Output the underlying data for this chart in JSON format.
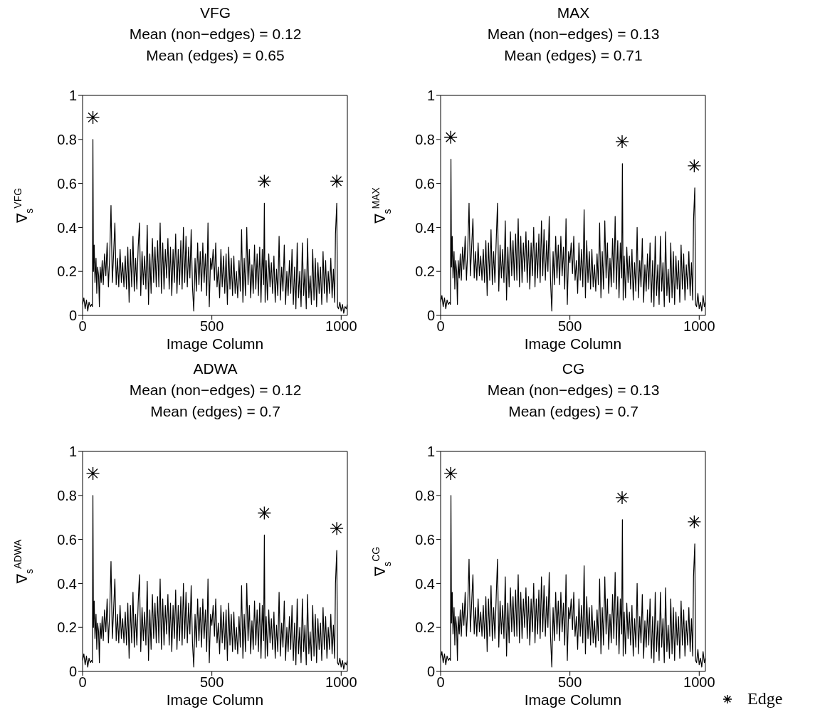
{
  "chart_data": [
    {
      "type": "line",
      "title": "VFG",
      "subtitle": "Mean (non−edges) = 0.12\nMean (edges) = 0.65",
      "xlabel": "Image Column",
      "ylabel": "∇$_{s}$$^{VFG}$",
      "xlim": [
        0,
        1024
      ],
      "xticks": [
        0,
        500,
        1000
      ],
      "ylim": [
        0,
        1
      ],
      "yticks": [
        0,
        0.2,
        0.4,
        0.6,
        0.8,
        1
      ],
      "legend": false,
      "x": [
        0,
        5,
        10,
        15,
        20,
        25,
        30,
        35,
        38,
        40,
        42,
        45,
        48,
        52,
        55,
        58,
        62,
        65,
        68,
        72,
        76,
        80,
        85,
        90,
        95,
        100,
        105,
        110,
        115,
        120,
        125,
        130,
        135,
        140,
        145,
        150,
        155,
        160,
        165,
        170,
        175,
        180,
        185,
        190,
        195,
        200,
        205,
        210,
        215,
        220,
        225,
        230,
        235,
        240,
        245,
        250,
        255,
        260,
        265,
        270,
        275,
        280,
        285,
        290,
        295,
        300,
        305,
        310,
        315,
        320,
        325,
        330,
        335,
        340,
        345,
        350,
        355,
        360,
        365,
        370,
        375,
        380,
        385,
        390,
        395,
        400,
        405,
        410,
        415,
        420,
        425,
        430,
        435,
        440,
        445,
        450,
        455,
        460,
        465,
        470,
        475,
        480,
        485,
        490,
        495,
        500,
        505,
        510,
        515,
        520,
        525,
        530,
        535,
        540,
        545,
        550,
        555,
        560,
        565,
        570,
        575,
        580,
        585,
        590,
        595,
        600,
        605,
        610,
        615,
        620,
        625,
        630,
        635,
        640,
        645,
        650,
        655,
        660,
        665,
        670,
        675,
        680,
        685,
        690,
        695,
        700,
        703,
        706,
        710,
        715,
        720,
        725,
        730,
        735,
        740,
        745,
        750,
        755,
        760,
        765,
        770,
        775,
        780,
        785,
        790,
        795,
        800,
        805,
        810,
        815,
        820,
        825,
        830,
        835,
        840,
        845,
        850,
        855,
        860,
        865,
        870,
        875,
        880,
        885,
        890,
        895,
        900,
        905,
        910,
        915,
        920,
        925,
        930,
        935,
        940,
        945,
        950,
        955,
        960,
        965,
        970,
        975,
        978,
        983,
        986,
        990,
        995,
        1000,
        1005,
        1010,
        1015,
        1020,
        1024
      ],
      "series": [
        {
          "color": "#000000",
          "values": [
            0.05,
            0.08,
            0.03,
            0.07,
            0.02,
            0.06,
            0.04,
            0.05,
            0.04,
            0.8,
            0.2,
            0.32,
            0.15,
            0.26,
            0.1,
            0.22,
            0.18,
            0.04,
            0.22,
            0.15,
            0.25,
            0.14,
            0.28,
            0.18,
            0.33,
            0.13,
            0.27,
            0.5,
            0.15,
            0.28,
            0.42,
            0.14,
            0.26,
            0.13,
            0.3,
            0.15,
            0.24,
            0.13,
            0.27,
            0.12,
            0.31,
            0.06,
            0.3,
            0.13,
            0.36,
            0.11,
            0.26,
            0.12,
            0.31,
            0.42,
            0.09,
            0.29,
            0.14,
            0.27,
            0.12,
            0.41,
            0.05,
            0.28,
            0.1,
            0.35,
            0.15,
            0.31,
            0.13,
            0.34,
            0.13,
            0.42,
            0.1,
            0.33,
            0.12,
            0.3,
            0.17,
            0.35,
            0.12,
            0.31,
            0.09,
            0.3,
            0.15,
            0.37,
            0.1,
            0.3,
            0.14,
            0.34,
            0.12,
            0.4,
            0.15,
            0.36,
            0.13,
            0.31,
            0.17,
            0.39,
            0.13,
            0.02,
            0.26,
            0.11,
            0.33,
            0.14,
            0.29,
            0.11,
            0.33,
            0.15,
            0.28,
            0.09,
            0.42,
            0.04,
            0.26,
            0.21,
            0.3,
            0.16,
            0.33,
            0.13,
            0.22,
            0.08,
            0.3,
            0.13,
            0.27,
            0.1,
            0.28,
            0.05,
            0.31,
            0.12,
            0.26,
            0.09,
            0.27,
            0.1,
            0.2,
            0.08,
            0.25,
            0.11,
            0.39,
            0.06,
            0.26,
            0.09,
            0.4,
            0.14,
            0.3,
            0.08,
            0.23,
            0.1,
            0.32,
            0.12,
            0.28,
            0.09,
            0.31,
            0.06,
            0.3,
            0.14,
            0.51,
            0.06,
            0.25,
            0.07,
            0.28,
            0.13,
            0.24,
            0.1,
            0.27,
            0.06,
            0.21,
            0.09,
            0.36,
            0.07,
            0.22,
            0.11,
            0.32,
            0.05,
            0.2,
            0.09,
            0.25,
            0.1,
            0.3,
            0.05,
            0.22,
            0.03,
            0.33,
            0.08,
            0.2,
            0.04,
            0.33,
            0.09,
            0.21,
            0.03,
            0.35,
            0.08,
            0.18,
            0.05,
            0.3,
            0.07,
            0.26,
            0.04,
            0.24,
            0.1,
            0.22,
            0.05,
            0.29,
            0.1,
            0.25,
            0.06,
            0.2,
            0.1,
            0.26,
            0.08,
            0.21,
            0.06,
            0.37,
            0.51,
            0.04,
            0.03,
            0.06,
            0.02,
            0.05,
            0.01,
            0.04,
            0.03,
            0.05
          ]
        },
        {
          "type": "scatter",
          "color": "#000000",
          "marker": "cross",
          "x": [
            40,
            703,
            983
          ],
          "values": [
            0.9,
            0.61,
            0.61
          ]
        }
      ]
    },
    {
      "type": "line",
      "title": "MAX",
      "subtitle": "Mean (non−edges) = 0.13\nMean (edges) = 0.71",
      "xlabel": "Image Column",
      "ylabel": "∇$_{s}$$^{MAX}$",
      "xlim": [
        0,
        1024
      ],
      "xticks": [
        0,
        500,
        1000
      ],
      "ylim": [
        0,
        1
      ],
      "yticks": [
        0,
        0.2,
        0.4,
        0.6,
        0.8,
        1
      ],
      "legend": false,
      "x": [
        0,
        5,
        10,
        15,
        20,
        25,
        30,
        35,
        38,
        40,
        42,
        45,
        48,
        52,
        55,
        58,
        62,
        65,
        68,
        72,
        76,
        80,
        85,
        90,
        95,
        100,
        105,
        110,
        115,
        120,
        125,
        130,
        135,
        140,
        145,
        150,
        155,
        160,
        165,
        170,
        175,
        180,
        185,
        190,
        195,
        200,
        205,
        210,
        215,
        220,
        225,
        230,
        235,
        240,
        245,
        250,
        255,
        260,
        265,
        270,
        275,
        280,
        285,
        290,
        295,
        300,
        305,
        310,
        315,
        320,
        325,
        330,
        335,
        340,
        345,
        350,
        355,
        360,
        365,
        370,
        375,
        380,
        385,
        390,
        395,
        400,
        405,
        410,
        415,
        420,
        425,
        430,
        435,
        440,
        445,
        450,
        455,
        460,
        465,
        470,
        475,
        480,
        485,
        490,
        495,
        500,
        505,
        510,
        515,
        520,
        525,
        530,
        535,
        540,
        545,
        550,
        555,
        560,
        565,
        570,
        575,
        580,
        585,
        590,
        595,
        600,
        605,
        610,
        615,
        620,
        625,
        630,
        635,
        640,
        645,
        650,
        655,
        660,
        665,
        670,
        675,
        680,
        685,
        690,
        695,
        700,
        703,
        706,
        710,
        715,
        720,
        725,
        730,
        735,
        740,
        745,
        750,
        755,
        760,
        765,
        770,
        775,
        780,
        785,
        790,
        795,
        800,
        805,
        810,
        815,
        820,
        825,
        830,
        835,
        840,
        845,
        850,
        855,
        860,
        865,
        870,
        875,
        880,
        885,
        890,
        895,
        900,
        905,
        910,
        915,
        920,
        925,
        930,
        935,
        940,
        945,
        950,
        955,
        960,
        965,
        970,
        975,
        978,
        983,
        986,
        990,
        995,
        1000,
        1005,
        1010,
        1015,
        1020,
        1024
      ],
      "series": [
        {
          "color": "#000000",
          "values": [
            0.06,
            0.09,
            0.04,
            0.08,
            0.03,
            0.07,
            0.05,
            0.06,
            0.05,
            0.71,
            0.22,
            0.36,
            0.17,
            0.29,
            0.12,
            0.25,
            0.2,
            0.05,
            0.25,
            0.17,
            0.28,
            0.16,
            0.31,
            0.21,
            0.36,
            0.16,
            0.3,
            0.51,
            0.18,
            0.31,
            0.44,
            0.17,
            0.29,
            0.16,
            0.33,
            0.18,
            0.27,
            0.16,
            0.3,
            0.15,
            0.34,
            0.09,
            0.33,
            0.16,
            0.39,
            0.14,
            0.29,
            0.15,
            0.34,
            0.51,
            0.11,
            0.32,
            0.17,
            0.3,
            0.15,
            0.43,
            0.07,
            0.31,
            0.13,
            0.38,
            0.18,
            0.34,
            0.16,
            0.37,
            0.16,
            0.44,
            0.13,
            0.36,
            0.15,
            0.33,
            0.2,
            0.38,
            0.15,
            0.34,
            0.12,
            0.33,
            0.18,
            0.4,
            0.13,
            0.33,
            0.17,
            0.37,
            0.15,
            0.43,
            0.18,
            0.39,
            0.16,
            0.34,
            0.2,
            0.45,
            0.16,
            0.02,
            0.29,
            0.14,
            0.36,
            0.17,
            0.32,
            0.14,
            0.36,
            0.18,
            0.31,
            0.12,
            0.44,
            0.05,
            0.29,
            0.24,
            0.33,
            0.19,
            0.36,
            0.16,
            0.25,
            0.1,
            0.33,
            0.16,
            0.3,
            0.13,
            0.48,
            0.08,
            0.34,
            0.15,
            0.29,
            0.12,
            0.3,
            0.13,
            0.23,
            0.11,
            0.28,
            0.14,
            0.42,
            0.08,
            0.29,
            0.12,
            0.43,
            0.17,
            0.33,
            0.1,
            0.26,
            0.13,
            0.35,
            0.15,
            0.45,
            0.12,
            0.34,
            0.08,
            0.33,
            0.17,
            0.69,
            0.07,
            0.27,
            0.08,
            0.31,
            0.15,
            0.27,
            0.12,
            0.3,
            0.07,
            0.24,
            0.11,
            0.4,
            0.08,
            0.25,
            0.13,
            0.35,
            0.06,
            0.23,
            0.11,
            0.28,
            0.12,
            0.33,
            0.06,
            0.25,
            0.04,
            0.36,
            0.09,
            0.23,
            0.05,
            0.36,
            0.11,
            0.24,
            0.04,
            0.38,
            0.09,
            0.21,
            0.06,
            0.33,
            0.08,
            0.29,
            0.05,
            0.27,
            0.12,
            0.25,
            0.06,
            0.32,
            0.12,
            0.28,
            0.07,
            0.23,
            0.12,
            0.29,
            0.09,
            0.24,
            0.07,
            0.43,
            0.58,
            0.05,
            0.04,
            0.1,
            0.03,
            0.06,
            0.02,
            0.09,
            0.04,
            0.06
          ]
        },
        {
          "type": "scatter",
          "color": "#000000",
          "marker": "cross",
          "x": [
            39,
            702,
            981
          ],
          "values": [
            0.81,
            0.79,
            0.68
          ]
        }
      ]
    },
    {
      "type": "line",
      "title": "ADWA",
      "subtitle": "Mean (non−edges) = 0.12\nMean (edges) = 0.7",
      "xlabel": "Image Column",
      "ylabel": "∇$_{s}$$^{ADWA}$",
      "xlim": [
        0,
        1024
      ],
      "xticks": [
        0,
        500,
        1000
      ],
      "ylim": [
        0,
        1
      ],
      "yticks": [
        0,
        0.2,
        0.4,
        0.6,
        0.8,
        1
      ],
      "legend": false,
      "x": [
        0,
        5,
        10,
        15,
        20,
        25,
        30,
        35,
        38,
        40,
        42,
        45,
        48,
        52,
        55,
        58,
        62,
        65,
        68,
        72,
        76,
        80,
        85,
        90,
        95,
        100,
        105,
        110,
        115,
        120,
        125,
        130,
        135,
        140,
        145,
        150,
        155,
        160,
        165,
        170,
        175,
        180,
        185,
        190,
        195,
        200,
        205,
        210,
        215,
        220,
        225,
        230,
        235,
        240,
        245,
        250,
        255,
        260,
        265,
        270,
        275,
        280,
        285,
        290,
        295,
        300,
        305,
        310,
        315,
        320,
        325,
        330,
        335,
        340,
        345,
        350,
        355,
        360,
        365,
        370,
        375,
        380,
        385,
        390,
        395,
        400,
        405,
        410,
        415,
        420,
        425,
        430,
        435,
        440,
        445,
        450,
        455,
        460,
        465,
        470,
        475,
        480,
        485,
        490,
        495,
        500,
        505,
        510,
        515,
        520,
        525,
        530,
        535,
        540,
        545,
        550,
        555,
        560,
        565,
        570,
        575,
        580,
        585,
        590,
        595,
        600,
        605,
        610,
        615,
        620,
        625,
        630,
        635,
        640,
        645,
        650,
        655,
        660,
        665,
        670,
        675,
        680,
        685,
        690,
        695,
        700,
        703,
        706,
        710,
        715,
        720,
        725,
        730,
        735,
        740,
        745,
        750,
        755,
        760,
        765,
        770,
        775,
        780,
        785,
        790,
        795,
        800,
        805,
        810,
        815,
        820,
        825,
        830,
        835,
        840,
        845,
        850,
        855,
        860,
        865,
        870,
        875,
        880,
        885,
        890,
        895,
        900,
        905,
        910,
        915,
        920,
        925,
        930,
        935,
        940,
        945,
        950,
        955,
        960,
        965,
        970,
        975,
        978,
        983,
        986,
        990,
        995,
        1000,
        1005,
        1010,
        1015,
        1020,
        1024
      ],
      "series": [
        {
          "color": "#000000",
          "values": [
            0.05,
            0.08,
            0.03,
            0.07,
            0.02,
            0.06,
            0.04,
            0.05,
            0.04,
            0.8,
            0.2,
            0.32,
            0.15,
            0.26,
            0.1,
            0.22,
            0.18,
            0.04,
            0.22,
            0.15,
            0.25,
            0.14,
            0.28,
            0.18,
            0.33,
            0.13,
            0.27,
            0.5,
            0.15,
            0.28,
            0.42,
            0.14,
            0.26,
            0.13,
            0.3,
            0.15,
            0.24,
            0.13,
            0.27,
            0.12,
            0.31,
            0.06,
            0.3,
            0.13,
            0.36,
            0.11,
            0.26,
            0.12,
            0.31,
            0.44,
            0.09,
            0.29,
            0.14,
            0.27,
            0.12,
            0.41,
            0.05,
            0.28,
            0.1,
            0.35,
            0.15,
            0.31,
            0.13,
            0.34,
            0.13,
            0.42,
            0.1,
            0.33,
            0.12,
            0.3,
            0.17,
            0.35,
            0.12,
            0.31,
            0.09,
            0.3,
            0.15,
            0.37,
            0.1,
            0.3,
            0.14,
            0.34,
            0.12,
            0.4,
            0.15,
            0.36,
            0.13,
            0.31,
            0.17,
            0.39,
            0.13,
            0.02,
            0.26,
            0.11,
            0.33,
            0.14,
            0.29,
            0.11,
            0.33,
            0.15,
            0.28,
            0.09,
            0.42,
            0.04,
            0.26,
            0.21,
            0.3,
            0.16,
            0.33,
            0.13,
            0.22,
            0.08,
            0.3,
            0.13,
            0.27,
            0.1,
            0.28,
            0.05,
            0.31,
            0.12,
            0.26,
            0.09,
            0.27,
            0.1,
            0.2,
            0.08,
            0.25,
            0.11,
            0.39,
            0.06,
            0.26,
            0.09,
            0.4,
            0.14,
            0.3,
            0.08,
            0.23,
            0.1,
            0.32,
            0.12,
            0.28,
            0.09,
            0.31,
            0.06,
            0.3,
            0.14,
            0.62,
            0.06,
            0.25,
            0.07,
            0.28,
            0.13,
            0.24,
            0.1,
            0.27,
            0.06,
            0.21,
            0.09,
            0.36,
            0.07,
            0.22,
            0.11,
            0.32,
            0.05,
            0.2,
            0.09,
            0.25,
            0.1,
            0.3,
            0.05,
            0.22,
            0.03,
            0.33,
            0.08,
            0.2,
            0.04,
            0.33,
            0.09,
            0.21,
            0.03,
            0.35,
            0.08,
            0.18,
            0.05,
            0.3,
            0.07,
            0.26,
            0.04,
            0.24,
            0.1,
            0.22,
            0.05,
            0.29,
            0.1,
            0.25,
            0.06,
            0.2,
            0.1,
            0.26,
            0.08,
            0.21,
            0.06,
            0.4,
            0.55,
            0.04,
            0.03,
            0.06,
            0.02,
            0.05,
            0.01,
            0.04,
            0.03,
            0.05
          ]
        },
        {
          "type": "scatter",
          "color": "#000000",
          "marker": "cross",
          "x": [
            40,
            703,
            983
          ],
          "values": [
            0.9,
            0.72,
            0.65
          ]
        }
      ]
    },
    {
      "type": "line",
      "title": "CG",
      "subtitle": "Mean (non−edges) = 0.13\nMean (edges) = 0.7",
      "xlabel": "Image Column",
      "ylabel": "∇$_{s}$$^{CG}$",
      "xlim": [
        0,
        1024
      ],
      "xticks": [
        0,
        500,
        1000
      ],
      "ylim": [
        0,
        1
      ],
      "yticks": [
        0,
        0.2,
        0.4,
        0.6,
        0.8,
        1
      ],
      "legend": "bottom right",
      "x": [
        0,
        5,
        10,
        15,
        20,
        25,
        30,
        35,
        38,
        40,
        42,
        45,
        48,
        52,
        55,
        58,
        62,
        65,
        68,
        72,
        76,
        80,
        85,
        90,
        95,
        100,
        105,
        110,
        115,
        120,
        125,
        130,
        135,
        140,
        145,
        150,
        155,
        160,
        165,
        170,
        175,
        180,
        185,
        190,
        195,
        200,
        205,
        210,
        215,
        220,
        225,
        230,
        235,
        240,
        245,
        250,
        255,
        260,
        265,
        270,
        275,
        280,
        285,
        290,
        295,
        300,
        305,
        310,
        315,
        320,
        325,
        330,
        335,
        340,
        345,
        350,
        355,
        360,
        365,
        370,
        375,
        380,
        385,
        390,
        395,
        400,
        405,
        410,
        415,
        420,
        425,
        430,
        435,
        440,
        445,
        450,
        455,
        460,
        465,
        470,
        475,
        480,
        485,
        490,
        495,
        500,
        505,
        510,
        515,
        520,
        525,
        530,
        535,
        540,
        545,
        550,
        555,
        560,
        565,
        570,
        575,
        580,
        585,
        590,
        595,
        600,
        605,
        610,
        615,
        620,
        625,
        630,
        635,
        640,
        645,
        650,
        655,
        660,
        665,
        670,
        675,
        680,
        685,
        690,
        695,
        700,
        703,
        706,
        710,
        715,
        720,
        725,
        730,
        735,
        740,
        745,
        750,
        755,
        760,
        765,
        770,
        775,
        780,
        785,
        790,
        795,
        800,
        805,
        810,
        815,
        820,
        825,
        830,
        835,
        840,
        845,
        850,
        855,
        860,
        865,
        870,
        875,
        880,
        885,
        890,
        895,
        900,
        905,
        910,
        915,
        920,
        925,
        930,
        935,
        940,
        945,
        950,
        955,
        960,
        965,
        970,
        975,
        978,
        983,
        986,
        990,
        995,
        1000,
        1005,
        1010,
        1015,
        1020,
        1024
      ],
      "series": [
        {
          "color": "#000000",
          "values": [
            0.06,
            0.09,
            0.04,
            0.08,
            0.03,
            0.07,
            0.05,
            0.06,
            0.05,
            0.8,
            0.22,
            0.36,
            0.17,
            0.29,
            0.12,
            0.25,
            0.2,
            0.05,
            0.25,
            0.17,
            0.28,
            0.16,
            0.31,
            0.21,
            0.36,
            0.16,
            0.3,
            0.51,
            0.18,
            0.31,
            0.44,
            0.17,
            0.29,
            0.16,
            0.33,
            0.18,
            0.27,
            0.16,
            0.3,
            0.15,
            0.34,
            0.09,
            0.33,
            0.16,
            0.39,
            0.14,
            0.29,
            0.15,
            0.34,
            0.51,
            0.11,
            0.32,
            0.17,
            0.3,
            0.15,
            0.43,
            0.07,
            0.31,
            0.13,
            0.38,
            0.18,
            0.34,
            0.16,
            0.37,
            0.16,
            0.44,
            0.13,
            0.36,
            0.15,
            0.33,
            0.2,
            0.38,
            0.15,
            0.34,
            0.12,
            0.33,
            0.18,
            0.4,
            0.13,
            0.33,
            0.17,
            0.37,
            0.15,
            0.43,
            0.18,
            0.39,
            0.16,
            0.34,
            0.2,
            0.45,
            0.16,
            0.02,
            0.29,
            0.14,
            0.36,
            0.17,
            0.32,
            0.14,
            0.36,
            0.18,
            0.31,
            0.12,
            0.44,
            0.05,
            0.29,
            0.24,
            0.33,
            0.19,
            0.36,
            0.16,
            0.25,
            0.1,
            0.33,
            0.16,
            0.3,
            0.13,
            0.48,
            0.08,
            0.34,
            0.15,
            0.29,
            0.12,
            0.3,
            0.13,
            0.23,
            0.11,
            0.28,
            0.14,
            0.42,
            0.08,
            0.29,
            0.12,
            0.43,
            0.17,
            0.33,
            0.1,
            0.26,
            0.13,
            0.35,
            0.15,
            0.45,
            0.12,
            0.34,
            0.08,
            0.33,
            0.17,
            0.69,
            0.07,
            0.27,
            0.08,
            0.31,
            0.15,
            0.27,
            0.12,
            0.3,
            0.07,
            0.24,
            0.11,
            0.4,
            0.08,
            0.25,
            0.13,
            0.35,
            0.06,
            0.23,
            0.11,
            0.28,
            0.12,
            0.33,
            0.06,
            0.25,
            0.04,
            0.36,
            0.09,
            0.23,
            0.05,
            0.36,
            0.11,
            0.24,
            0.04,
            0.38,
            0.09,
            0.21,
            0.06,
            0.33,
            0.08,
            0.29,
            0.05,
            0.27,
            0.12,
            0.25,
            0.06,
            0.32,
            0.12,
            0.28,
            0.07,
            0.23,
            0.12,
            0.29,
            0.09,
            0.24,
            0.07,
            0.43,
            0.58,
            0.05,
            0.04,
            0.1,
            0.03,
            0.06,
            0.02,
            0.09,
            0.04,
            0.06
          ]
        },
        {
          "type": "scatter",
          "name": "Edge",
          "color": "#000000",
          "marker": "cross",
          "x": [
            39,
            702,
            981
          ],
          "values": [
            0.9,
            0.79,
            0.68
          ]
        }
      ]
    }
  ]
}
